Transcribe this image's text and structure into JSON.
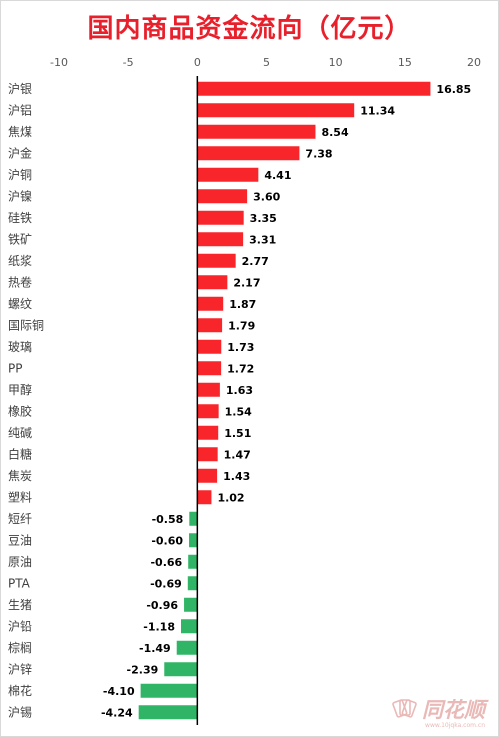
{
  "chart_data": {
    "type": "bar",
    "orientation": "horizontal",
    "title": "国内商品资金流向（亿元）",
    "xlim": [
      -10,
      20
    ],
    "xticks": [
      -10,
      -5,
      0,
      5,
      10,
      15,
      20
    ],
    "xlabel": "",
    "ylabel": "",
    "grid": false,
    "legend": "none",
    "categories": [
      "沪银",
      "沪铝",
      "焦煤",
      "沪金",
      "沪铜",
      "沪镍",
      "硅铁",
      "铁矿",
      "纸浆",
      "热卷",
      "螺纹",
      "国际铜",
      "玻璃",
      "PP",
      "甲醇",
      "橡胶",
      "纯碱",
      "白糖",
      "焦炭",
      "塑料",
      "短纤",
      "豆油",
      "原油",
      "PTA",
      "生猪",
      "沪铅",
      "棕榈",
      "沪锌",
      "棉花",
      "沪锡"
    ],
    "values": [
      16.85,
      11.34,
      8.54,
      7.38,
      4.41,
      3.6,
      3.35,
      3.31,
      2.77,
      2.17,
      1.87,
      1.79,
      1.73,
      1.72,
      1.63,
      1.54,
      1.51,
      1.47,
      1.43,
      1.02,
      -0.58,
      -0.6,
      -0.66,
      -0.69,
      -0.96,
      -1.18,
      -1.49,
      -2.39,
      -4.1,
      -4.24
    ],
    "value_labels": [
      "16.85",
      "11.34",
      "8.54",
      "7.38",
      "4.41",
      "3.60",
      "3.35",
      "3.31",
      "2.77",
      "2.17",
      "1.87",
      "1.79",
      "1.73",
      "1.72",
      "1.63",
      "1.54",
      "1.51",
      "1.47",
      "1.43",
      "1.02",
      "-0.58",
      "-0.60",
      "-0.66",
      "-0.69",
      "-0.96",
      "-1.18",
      "-1.49",
      "-2.39",
      "-4.10",
      "-4.24"
    ],
    "colors": {
      "positive": "#f8262a",
      "negative": "#2fb565",
      "axis": "#000000",
      "title": "#e8202b"
    }
  },
  "watermark": {
    "text": "同花顺",
    "url": "www.10jqka.com.cn",
    "icon": "card-fan-icon",
    "color": "#e7b2b0"
  }
}
